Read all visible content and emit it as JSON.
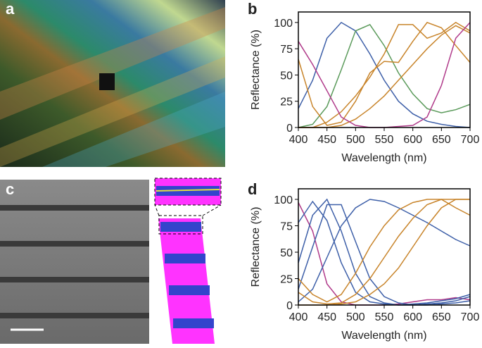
{
  "panel_labels": [
    "a",
    "b",
    "c",
    "d"
  ],
  "chart_data": [
    {
      "type": "line",
      "xlabel": "Wavelength (nm)",
      "ylabel": "Reflectance (%)",
      "xlim": [
        400,
        700
      ],
      "ylim": [
        0,
        110
      ],
      "xticks": [
        400,
        450,
        500,
        550,
        600,
        650,
        700
      ],
      "yticks": [
        0,
        25,
        50,
        75,
        100
      ],
      "x": [
        400,
        425,
        450,
        475,
        500,
        525,
        550,
        575,
        600,
        625,
        650,
        675,
        700
      ],
      "series": [
        {
          "color": "#3d5fa8",
          "values": [
            18,
            45,
            85,
            100,
            92,
            70,
            45,
            25,
            13,
            6,
            3,
            1,
            0
          ]
        },
        {
          "color": "#5a9a5a",
          "values": [
            0,
            3,
            20,
            55,
            92,
            98,
            78,
            52,
            32,
            18,
            14,
            17,
            22
          ]
        },
        {
          "color": "#c8842a",
          "values": [
            65,
            20,
            2,
            5,
            25,
            52,
            63,
            62,
            82,
            100,
            95,
            78,
            62
          ]
        },
        {
          "color": "#c8842a",
          "values": [
            0,
            0,
            5,
            15,
            30,
            48,
            70,
            98,
            98,
            85,
            90,
            100,
            92
          ]
        },
        {
          "color": "#c8842a",
          "values": [
            0,
            0,
            0,
            2,
            8,
            18,
            30,
            45,
            60,
            75,
            88,
            97,
            90
          ]
        },
        {
          "color": "#b03a8a",
          "values": [
            82,
            60,
            35,
            10,
            2,
            0,
            0,
            1,
            2,
            10,
            40,
            85,
            100
          ]
        }
      ]
    },
    {
      "type": "line",
      "xlabel": "Wavelength (nm)",
      "ylabel": "Reflectance (%)",
      "xlim": [
        400,
        700
      ],
      "ylim": [
        0,
        110
      ],
      "xticks": [
        400,
        450,
        500,
        550,
        600,
        650,
        700
      ],
      "yticks": [
        0,
        25,
        50,
        75,
        100
      ],
      "x": [
        400,
        425,
        450,
        475,
        500,
        525,
        550,
        575,
        600,
        625,
        650,
        675,
        700
      ],
      "series": [
        {
          "color": "#b03a8a",
          "values": [
            97,
            70,
            20,
            3,
            0,
            0,
            0,
            1,
            3,
            5,
            5,
            7,
            5
          ]
        },
        {
          "color": "#3d5fa8",
          "values": [
            78,
            98,
            80,
            40,
            12,
            3,
            1,
            0,
            1,
            2,
            4,
            6,
            10
          ]
        },
        {
          "color": "#3d5fa8",
          "values": [
            40,
            85,
            100,
            70,
            30,
            8,
            2,
            0,
            0,
            1,
            2,
            4,
            8
          ]
        },
        {
          "color": "#3d5fa8",
          "values": [
            15,
            55,
            95,
            95,
            60,
            25,
            8,
            2,
            0,
            0,
            1,
            2,
            4
          ]
        },
        {
          "color": "#3d5fa8",
          "values": [
            3,
            15,
            45,
            75,
            92,
            100,
            98,
            92,
            85,
            78,
            70,
            62,
            56
          ]
        },
        {
          "color": "#c8842a",
          "values": [
            25,
            10,
            3,
            10,
            30,
            55,
            75,
            90,
            97,
            100,
            100,
            100,
            100
          ]
        },
        {
          "color": "#c8842a",
          "values": [
            12,
            3,
            1,
            2,
            10,
            25,
            45,
            65,
            82,
            95,
            100,
            92,
            85
          ]
        },
        {
          "color": "#c8842a",
          "values": [
            0,
            0,
            0,
            1,
            3,
            10,
            20,
            35,
            55,
            75,
            92,
            100,
            100
          ]
        }
      ]
    }
  ]
}
